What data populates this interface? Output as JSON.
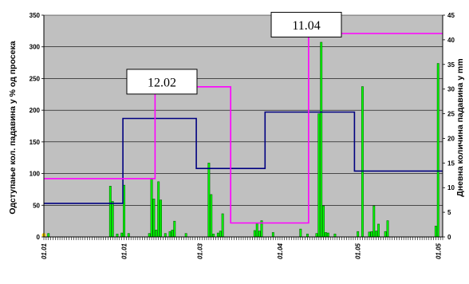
{
  "colors": {
    "plot_bg": "#C0C0C0",
    "bar_fill": "#00FF00",
    "bar_stroke": "#006400",
    "navy_line": "#000080",
    "magenta_line": "#FF00FF",
    "marker": "#FFD700"
  },
  "chart_data": {
    "type": "bar",
    "grid": true,
    "legend": "none",
    "xlabel": "",
    "ylabel": "Одступање кол. падавина у % од просека",
    "y2label": "Дневна количина падавина у mm",
    "xlim": [
      0,
      174
    ],
    "ylim": [
      0,
      350
    ],
    "y2lim": [
      0,
      45
    ],
    "yticks": [
      0,
      50,
      100,
      150,
      200,
      250,
      300,
      350
    ],
    "y2ticks": [
      0,
      5,
      10,
      15,
      20,
      25,
      30,
      35,
      40,
      45
    ],
    "x_ticks": [
      {
        "x": 0,
        "label": "01.01"
      },
      {
        "x": 35,
        "label": "01.01"
      },
      {
        "x": 68,
        "label": "01.03"
      },
      {
        "x": 103,
        "label": "01.04"
      },
      {
        "x": 137,
        "label": "01.05"
      },
      {
        "x": 172,
        "label": "01.05"
      }
    ],
    "annotations": [
      {
        "text": "12.02",
        "x": 51.5,
        "y": 245
      },
      {
        "text": "11.04",
        "x": 114.5,
        "y": 335
      }
    ],
    "series": [
      {
        "type": "bar",
        "axis": "right",
        "x": [
          2,
          29,
          30,
          32,
          34,
          35,
          37,
          46,
          47,
          48,
          49,
          50,
          51,
          53,
          55,
          56,
          57,
          62,
          72,
          73,
          74,
          76,
          77,
          78,
          92,
          93,
          94,
          95,
          100,
          112,
          115,
          119,
          120,
          121,
          122,
          123,
          124,
          127,
          137,
          139,
          142,
          143,
          144,
          145,
          146,
          149,
          150,
          171,
          172
        ],
        "values": [
          0.7,
          10.3,
          7.2,
          0.6,
          0.8,
          10.5,
          0.7,
          0.7,
          11.9,
          7.7,
          1.4,
          11.2,
          7.5,
          0.7,
          1.1,
          1.4,
          3.2,
          0.7,
          15,
          8.6,
          0.6,
          0.8,
          1.2,
          4.7,
          1.3,
          2.8,
          1.2,
          3.3,
          0.9,
          1.6,
          0.6,
          0.7,
          25,
          39.5,
          6.3,
          0.9,
          0.8,
          0.6,
          1.1,
          30.5,
          1,
          1.1,
          6.3,
          1.2,
          2.6,
          1.1,
          3.3,
          2.2,
          35.2
        ]
      },
      {
        "type": "step",
        "axis": "left",
        "x": [
          0,
          34.5,
          34.5,
          66.5,
          66.5,
          96.5,
          96.5,
          135.5,
          135.5,
          174
        ],
        "values": [
          53,
          53,
          187,
          187,
          108,
          108,
          197,
          197,
          104,
          104
        ]
      },
      {
        "type": "step",
        "axis": "left",
        "x": [
          0,
          48.5,
          48.5,
          81.5,
          81.5,
          115.5,
          115.5,
          174
        ],
        "values": [
          92,
          92,
          237,
          237,
          22,
          22,
          321,
          321
        ]
      },
      {
        "type": "marker",
        "axis": "left",
        "x": [
          0
        ],
        "values": [
          3
        ]
      }
    ]
  }
}
